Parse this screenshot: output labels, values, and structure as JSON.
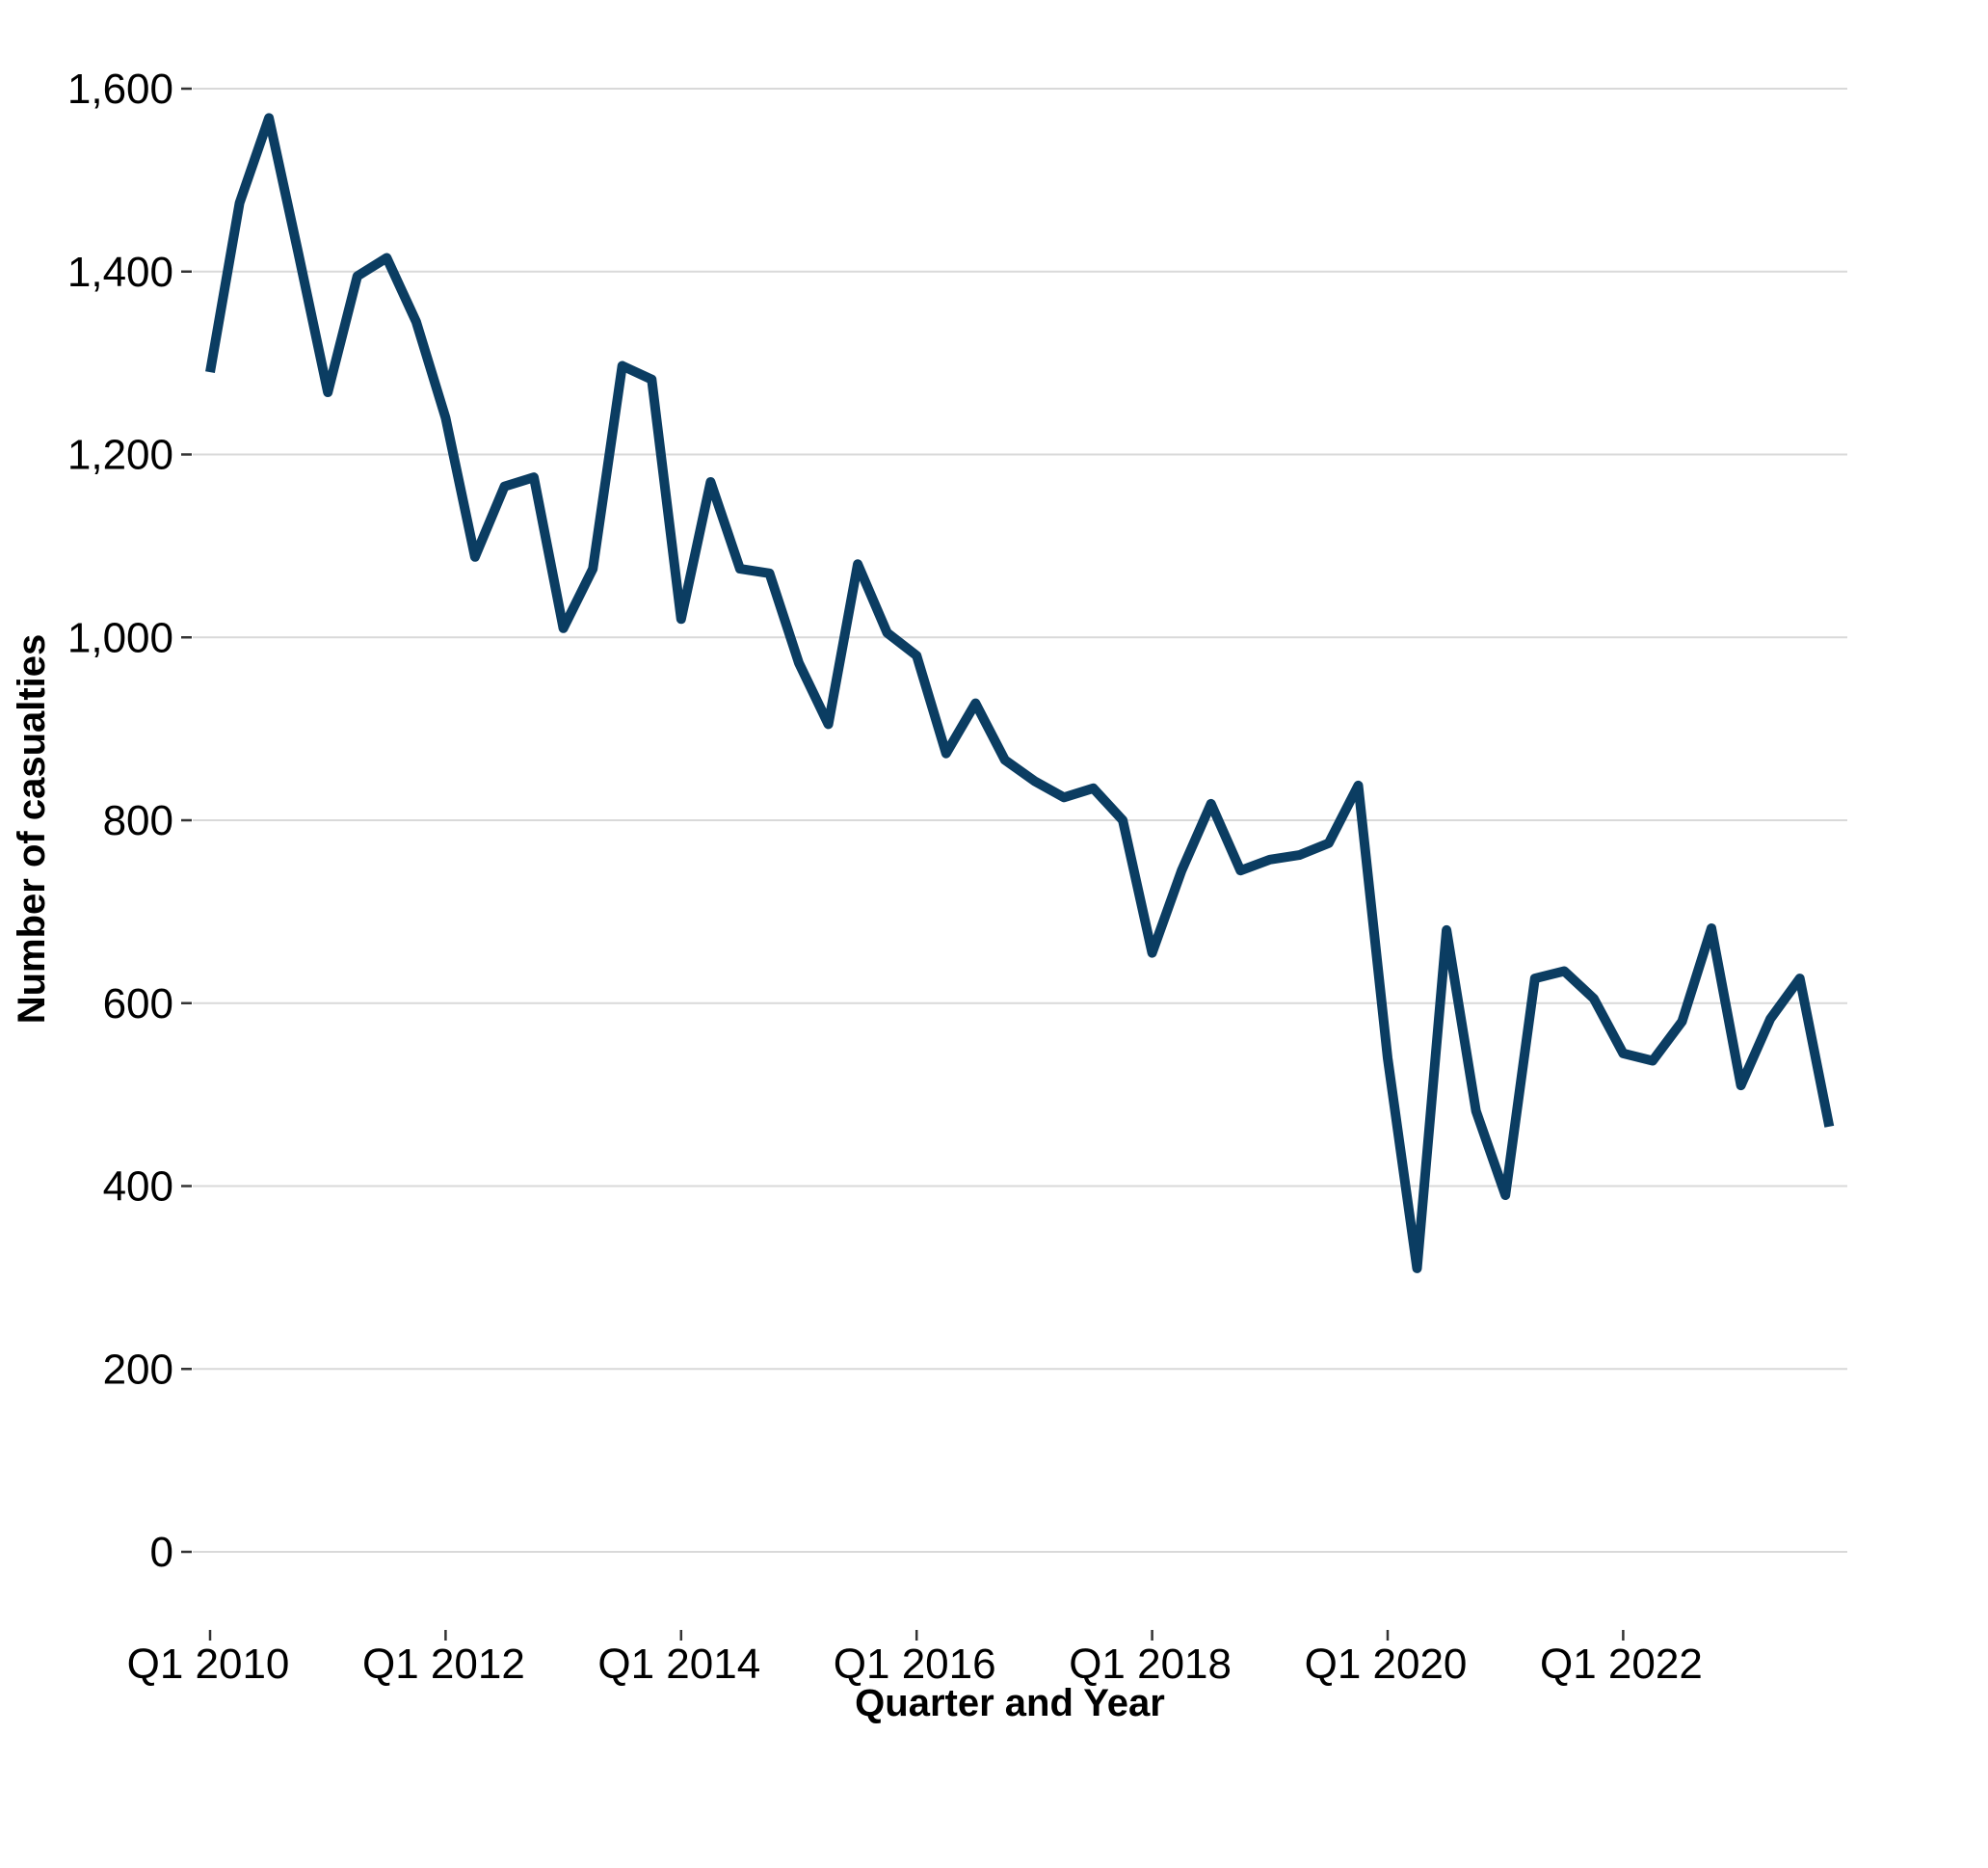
{
  "chart_data": {
    "type": "line",
    "xlabel": "Quarter and Year",
    "ylabel": "Number of casualties",
    "ylim": [
      0,
      1600
    ],
    "yticks": [
      0,
      200,
      400,
      600,
      800,
      1000,
      1200,
      1400,
      1600
    ],
    "ytick_labels": [
      "0",
      "200",
      "400",
      "600",
      "800",
      "1,000",
      "1,200",
      "1,400",
      "1,600"
    ],
    "xticks": [
      {
        "index": 0,
        "label": "Q1 2010"
      },
      {
        "index": 8,
        "label": "Q1 2012"
      },
      {
        "index": 16,
        "label": "Q1 2014"
      },
      {
        "index": 24,
        "label": "Q1 2016"
      },
      {
        "index": 32,
        "label": "Q1 2018"
      },
      {
        "index": 40,
        "label": "Q1 2020"
      },
      {
        "index": 48,
        "label": "Q1 2022"
      }
    ],
    "grid": true,
    "line_color": "#0b3d62",
    "categories": [
      "Q1 2010",
      "Q2 2010",
      "Q3 2010",
      "Q4 2010",
      "Q1 2011",
      "Q2 2011",
      "Q3 2011",
      "Q4 2011",
      "Q1 2012",
      "Q2 2012",
      "Q3 2012",
      "Q4 2012",
      "Q1 2013",
      "Q2 2013",
      "Q3 2013",
      "Q4 2013",
      "Q1 2014",
      "Q2 2014",
      "Q3 2014",
      "Q4 2014",
      "Q1 2015",
      "Q2 2015",
      "Q3 2015",
      "Q4 2015",
      "Q1 2016",
      "Q2 2016",
      "Q3 2016",
      "Q4 2016",
      "Q1 2017",
      "Q2 2017",
      "Q3 2017",
      "Q4 2017",
      "Q1 2018",
      "Q2 2018",
      "Q3 2018",
      "Q4 2018",
      "Q1 2019",
      "Q2 2019",
      "Q3 2019",
      "Q4 2019",
      "Q1 2020",
      "Q2 2020",
      "Q3 2020",
      "Q4 2020",
      "Q1 2021",
      "Q2 2021",
      "Q3 2021",
      "Q4 2021",
      "Q1 2022",
      "Q2 2022",
      "Q3 2022",
      "Q4 2022",
      "Q1 2023",
      "Q2 2023",
      "Q3 2023",
      "Q4 2023"
    ],
    "values": [
      1290,
      1475,
      1568,
      1420,
      1268,
      1395,
      1415,
      1345,
      1240,
      1088,
      1165,
      1175,
      1010,
      1075,
      1297,
      1282,
      1020,
      1170,
      1075,
      1070,
      972,
      905,
      1080,
      1005,
      980,
      873,
      928,
      866,
      843,
      825,
      835,
      800,
      655,
      745,
      818,
      745,
      757,
      762,
      775,
      838,
      540,
      310,
      680,
      482,
      390,
      627,
      635,
      605,
      545,
      537,
      580,
      682,
      510,
      583,
      627,
      465
    ]
  }
}
